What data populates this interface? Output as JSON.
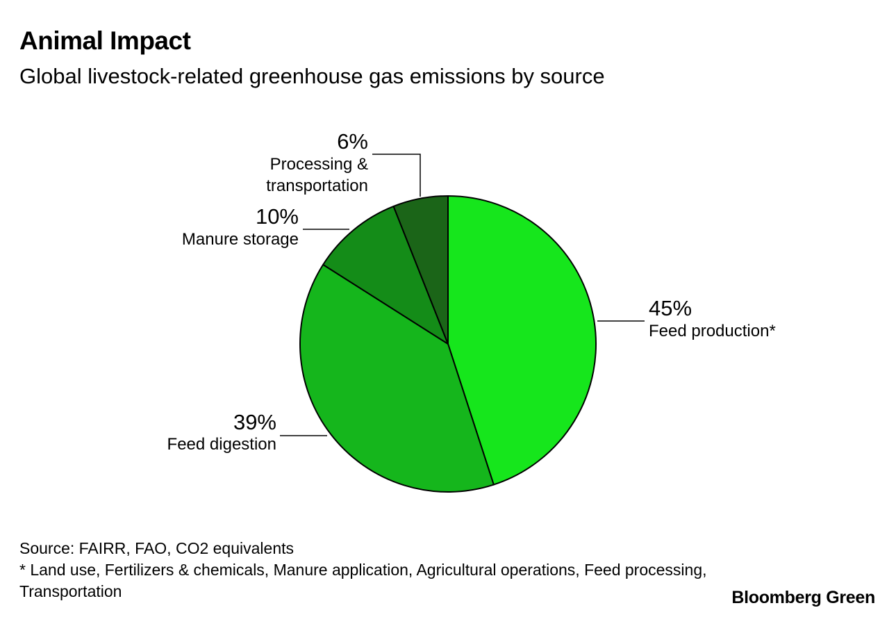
{
  "header": {
    "title": "Animal Impact",
    "subtitle": "Global livestock-related greenhouse gas emissions by source"
  },
  "chart_data": {
    "type": "pie",
    "title": "Animal Impact",
    "subtitle": "Global livestock-related greenhouse gas emissions by source",
    "unit": "%",
    "slices": [
      {
        "label": "Feed production*",
        "value": 45,
        "display": "45%",
        "color": "#16e61c"
      },
      {
        "label": "Feed digestion",
        "value": 39,
        "display": "39%",
        "color": "#15b61c"
      },
      {
        "label": "Manure storage",
        "value": 10,
        "display": "10%",
        "color": "#148c18"
      },
      {
        "label": "Processing & transportation",
        "value": 6,
        "display": "6%",
        "color": "#1b6518"
      }
    ]
  },
  "footer": {
    "source": "Source: FAIRR, FAO, CO2 equivalents",
    "note_line1": "* Land use, Fertilizers & chemicals, Manure application, Agricultural operations, Feed processing,",
    "note_line2": "Transportation",
    "brand": "Bloomberg Green"
  }
}
